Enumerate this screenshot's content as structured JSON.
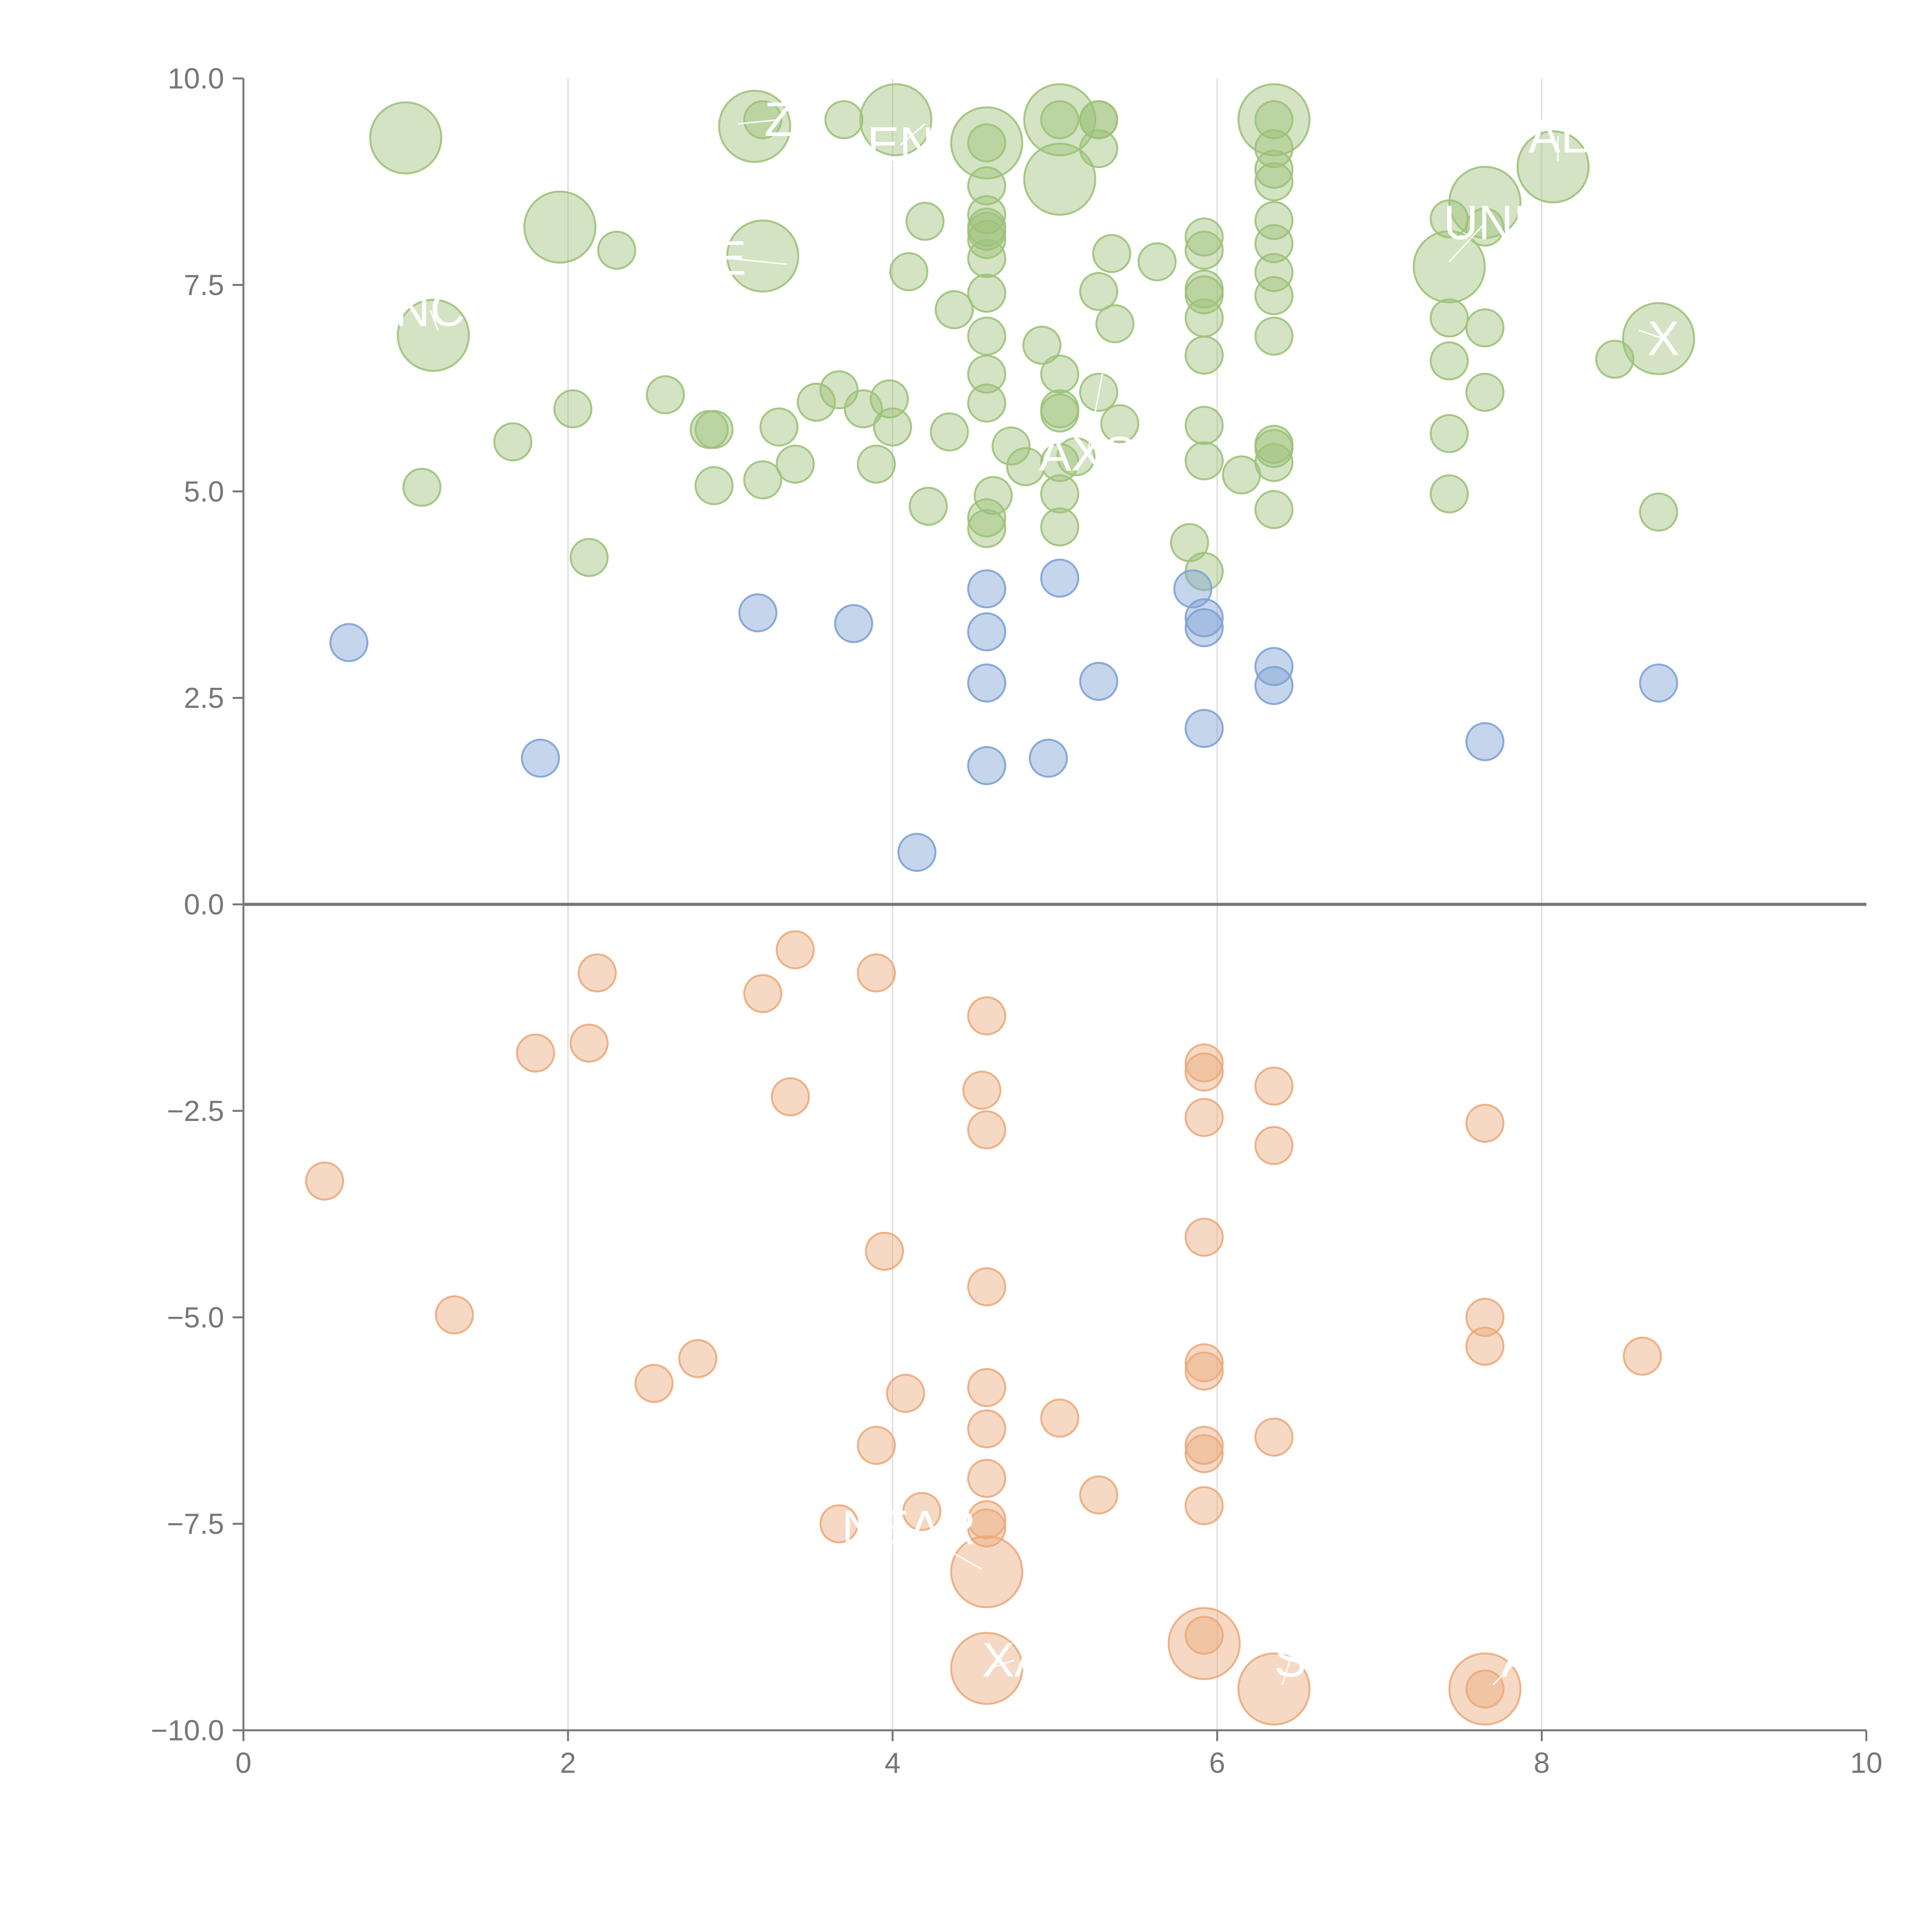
{
  "chart_data": {
    "type": "scatter",
    "title": "",
    "xlabel": "",
    "ylabel": "",
    "xlim": [
      0,
      10
    ],
    "ylim": [
      -10,
      10
    ],
    "x_ticks": [
      "0",
      "2",
      "4",
      "6",
      "8",
      "10"
    ],
    "y_ticks": [
      "−10.0",
      "−7.5",
      "−5.0",
      "−2.5",
      "0.0",
      "2.5",
      "5.0",
      "7.5",
      "10.0"
    ],
    "x_tick_values": [
      0,
      2,
      4,
      6,
      8,
      10
    ],
    "y_tick_values": [
      -10,
      -7.5,
      -5,
      -2.5,
      0,
      2.5,
      5,
      7.5,
      10
    ],
    "vertical_grid_at": [
      2,
      4,
      6,
      8
    ],
    "zero_line": true,
    "series": [
      {
        "color": "#9dc27a",
        "points": [
          {
            "x": 1.0,
            "y": 9.28,
            "size": 2
          },
          {
            "x": 1.17,
            "y": 6.89,
            "size": 2
          },
          {
            "x": 1.1,
            "y": 5.05,
            "size": 1
          },
          {
            "x": 1.66,
            "y": 5.6,
            "size": 1
          },
          {
            "x": 1.95,
            "y": 8.2,
            "size": 2
          },
          {
            "x": 2.03,
            "y": 6.0,
            "size": 1
          },
          {
            "x": 2.13,
            "y": 4.2,
            "size": 1
          },
          {
            "x": 2.3,
            "y": 7.92,
            "size": 1
          },
          {
            "x": 2.6,
            "y": 6.17,
            "size": 1
          },
          {
            "x": 2.87,
            "y": 5.75,
            "size": 1
          },
          {
            "x": 2.9,
            "y": 5.75,
            "size": 1
          },
          {
            "x": 2.9,
            "y": 5.07,
            "size": 1
          },
          {
            "x": 3.15,
            "y": 9.42,
            "size": 2
          },
          {
            "x": 3.2,
            "y": 7.85,
            "size": 2
          },
          {
            "x": 3.2,
            "y": 9.5,
            "size": 1
          },
          {
            "x": 3.2,
            "y": 5.14,
            "size": 1
          },
          {
            "x": 3.3,
            "y": 5.78,
            "size": 1
          },
          {
            "x": 3.4,
            "y": 5.33,
            "size": 1
          },
          {
            "x": 3.53,
            "y": 6.08,
            "size": 1
          },
          {
            "x": 3.67,
            "y": 6.23,
            "size": 1
          },
          {
            "x": 3.7,
            "y": 9.5,
            "size": 1
          },
          {
            "x": 3.82,
            "y": 6.0,
            "size": 1
          },
          {
            "x": 3.9,
            "y": 5.33,
            "size": 1
          },
          {
            "x": 3.98,
            "y": 6.12,
            "size": 1
          },
          {
            "x": 4.0,
            "y": 5.78,
            "size": 1
          },
          {
            "x": 4.02,
            "y": 9.5,
            "size": 2
          },
          {
            "x": 4.1,
            "y": 7.66,
            "size": 1
          },
          {
            "x": 4.2,
            "y": 8.27,
            "size": 1
          },
          {
            "x": 4.22,
            "y": 4.82,
            "size": 1
          },
          {
            "x": 4.35,
            "y": 5.72,
            "size": 1
          },
          {
            "x": 4.38,
            "y": 7.2,
            "size": 1
          },
          {
            "x": 4.58,
            "y": 9.22,
            "size": 2
          },
          {
            "x": 4.58,
            "y": 9.22,
            "size": 1
          },
          {
            "x": 4.58,
            "y": 8.7,
            "size": 1
          },
          {
            "x": 4.58,
            "y": 8.35,
            "size": 1
          },
          {
            "x": 4.58,
            "y": 8.2,
            "size": 1
          },
          {
            "x": 4.58,
            "y": 8.15,
            "size": 1
          },
          {
            "x": 4.58,
            "y": 8.05,
            "size": 1
          },
          {
            "x": 4.58,
            "y": 7.82,
            "size": 1
          },
          {
            "x": 4.58,
            "y": 7.4,
            "size": 1
          },
          {
            "x": 4.58,
            "y": 6.88,
            "size": 1
          },
          {
            "x": 4.58,
            "y": 6.42,
            "size": 1
          },
          {
            "x": 4.58,
            "y": 6.07,
            "size": 1
          },
          {
            "x": 4.62,
            "y": 4.95,
            "size": 1
          },
          {
            "x": 4.58,
            "y": 4.68,
            "size": 1
          },
          {
            "x": 4.58,
            "y": 4.55,
            "size": 1
          },
          {
            "x": 4.73,
            "y": 5.55,
            "size": 1
          },
          {
            "x": 4.82,
            "y": 5.3,
            "size": 1
          },
          {
            "x": 4.92,
            "y": 6.77,
            "size": 1
          },
          {
            "x": 5.03,
            "y": 9.5,
            "size": 2
          },
          {
            "x": 5.03,
            "y": 9.5,
            "size": 1
          },
          {
            "x": 5.03,
            "y": 8.78,
            "size": 2
          },
          {
            "x": 5.03,
            "y": 6.42,
            "size": 1
          },
          {
            "x": 5.03,
            "y": 6.0,
            "size": 1
          },
          {
            "x": 5.03,
            "y": 5.95,
            "size": 1
          },
          {
            "x": 5.03,
            "y": 5.35,
            "size": 1
          },
          {
            "x": 5.03,
            "y": 4.97,
            "size": 1
          },
          {
            "x": 5.03,
            "y": 4.57,
            "size": 1
          },
          {
            "x": 5.13,
            "y": 5.42,
            "size": 1
          },
          {
            "x": 5.27,
            "y": 9.5,
            "size": 1
          },
          {
            "x": 5.27,
            "y": 9.5,
            "size": 1
          },
          {
            "x": 5.27,
            "y": 9.15,
            "size": 1
          },
          {
            "x": 5.27,
            "y": 7.42,
            "size": 1
          },
          {
            "x": 5.27,
            "y": 6.2,
            "size": 1
          },
          {
            "x": 5.35,
            "y": 7.88,
            "size": 1
          },
          {
            "x": 5.37,
            "y": 7.03,
            "size": 1
          },
          {
            "x": 5.4,
            "y": 5.82,
            "size": 1
          },
          {
            "x": 5.63,
            "y": 7.78,
            "size": 1
          },
          {
            "x": 5.83,
            "y": 4.38,
            "size": 1
          },
          {
            "x": 5.92,
            "y": 8.08,
            "size": 1
          },
          {
            "x": 5.92,
            "y": 7.92,
            "size": 1
          },
          {
            "x": 5.92,
            "y": 7.45,
            "size": 1
          },
          {
            "x": 5.92,
            "y": 7.38,
            "size": 1
          },
          {
            "x": 5.92,
            "y": 7.1,
            "size": 1
          },
          {
            "x": 5.92,
            "y": 6.65,
            "size": 1
          },
          {
            "x": 5.92,
            "y": 5.8,
            "size": 1
          },
          {
            "x": 5.92,
            "y": 5.37,
            "size": 1
          },
          {
            "x": 5.92,
            "y": 4.03,
            "size": 1
          },
          {
            "x": 6.15,
            "y": 5.2,
            "size": 1
          },
          {
            "x": 6.35,
            "y": 9.5,
            "size": 2
          },
          {
            "x": 6.35,
            "y": 9.5,
            "size": 1
          },
          {
            "x": 6.35,
            "y": 9.15,
            "size": 1
          },
          {
            "x": 6.35,
            "y": 8.9,
            "size": 1
          },
          {
            "x": 6.35,
            "y": 8.75,
            "size": 1
          },
          {
            "x": 6.35,
            "y": 8.28,
            "size": 1
          },
          {
            "x": 6.35,
            "y": 8.0,
            "size": 1
          },
          {
            "x": 6.35,
            "y": 7.65,
            "size": 1
          },
          {
            "x": 6.35,
            "y": 7.37,
            "size": 1
          },
          {
            "x": 6.35,
            "y": 6.88,
            "size": 1
          },
          {
            "x": 6.35,
            "y": 5.57,
            "size": 1
          },
          {
            "x": 6.35,
            "y": 5.52,
            "size": 1
          },
          {
            "x": 6.35,
            "y": 5.35,
            "size": 1
          },
          {
            "x": 6.35,
            "y": 4.78,
            "size": 1
          },
          {
            "x": 7.43,
            "y": 8.3,
            "size": 1
          },
          {
            "x": 7.43,
            "y": 7.72,
            "size": 2
          },
          {
            "x": 7.43,
            "y": 7.1,
            "size": 1
          },
          {
            "x": 7.43,
            "y": 6.58,
            "size": 1
          },
          {
            "x": 7.43,
            "y": 5.7,
            "size": 1
          },
          {
            "x": 7.43,
            "y": 4.97,
            "size": 1
          },
          {
            "x": 7.65,
            "y": 8.5,
            "size": 2
          },
          {
            "x": 7.65,
            "y": 8.2,
            "size": 1
          },
          {
            "x": 7.65,
            "y": 6.98,
            "size": 1
          },
          {
            "x": 7.65,
            "y": 6.2,
            "size": 1
          },
          {
            "x": 8.07,
            "y": 8.93,
            "size": 2
          },
          {
            "x": 8.45,
            "y": 6.6,
            "size": 1
          },
          {
            "x": 8.72,
            "y": 6.85,
            "size": 2
          },
          {
            "x": 8.72,
            "y": 4.75,
            "size": 1
          }
        ]
      },
      {
        "color": "#7ea2d4",
        "points": [
          {
            "x": 0.65,
            "y": 3.17,
            "size": 1
          },
          {
            "x": 1.83,
            "y": 1.77,
            "size": 1
          },
          {
            "x": 3.17,
            "y": 3.53,
            "size": 1
          },
          {
            "x": 3.76,
            "y": 3.4,
            "size": 1
          },
          {
            "x": 4.15,
            "y": 0.63,
            "size": 1
          },
          {
            "x": 4.58,
            "y": 3.82,
            "size": 1
          },
          {
            "x": 4.58,
            "y": 3.3,
            "size": 1
          },
          {
            "x": 4.58,
            "y": 2.68,
            "size": 1
          },
          {
            "x": 4.58,
            "y": 1.68,
            "size": 1
          },
          {
            "x": 4.96,
            "y": 1.77,
            "size": 1
          },
          {
            "x": 5.03,
            "y": 3.95,
            "size": 1
          },
          {
            "x": 5.27,
            "y": 2.7,
            "size": 1
          },
          {
            "x": 5.85,
            "y": 3.82,
            "size": 1
          },
          {
            "x": 5.92,
            "y": 3.47,
            "size": 1
          },
          {
            "x": 5.92,
            "y": 3.35,
            "size": 1
          },
          {
            "x": 5.92,
            "y": 2.13,
            "size": 1
          },
          {
            "x": 6.35,
            "y": 2.88,
            "size": 1
          },
          {
            "x": 6.35,
            "y": 2.65,
            "size": 1
          },
          {
            "x": 7.65,
            "y": 1.97,
            "size": 1
          },
          {
            "x": 8.72,
            "y": 2.68,
            "size": 1
          }
        ]
      },
      {
        "color": "#ecaa7c",
        "points": [
          {
            "x": 0.5,
            "y": -3.35,
            "size": 1
          },
          {
            "x": 1.3,
            "y": -4.97,
            "size": 1
          },
          {
            "x": 1.8,
            "y": -1.8,
            "size": 1
          },
          {
            "x": 2.13,
            "y": -1.68,
            "size": 1
          },
          {
            "x": 2.18,
            "y": -0.83,
            "size": 1
          },
          {
            "x": 2.53,
            "y": -5.8,
            "size": 1
          },
          {
            "x": 2.8,
            "y": -5.5,
            "size": 1
          },
          {
            "x": 3.2,
            "y": -1.08,
            "size": 1
          },
          {
            "x": 3.37,
            "y": -2.33,
            "size": 1
          },
          {
            "x": 3.4,
            "y": -0.55,
            "size": 1
          },
          {
            "x": 3.67,
            "y": -7.5,
            "size": 1
          },
          {
            "x": 3.9,
            "y": -0.83,
            "size": 1
          },
          {
            "x": 3.9,
            "y": -6.55,
            "size": 1
          },
          {
            "x": 3.95,
            "y": -4.2,
            "size": 1
          },
          {
            "x": 4.08,
            "y": -5.92,
            "size": 1
          },
          {
            "x": 4.18,
            "y": -7.35,
            "size": 1
          },
          {
            "x": 4.55,
            "y": -2.25,
            "size": 1
          },
          {
            "x": 4.58,
            "y": -1.35,
            "size": 1
          },
          {
            "x": 4.58,
            "y": -2.73,
            "size": 1
          },
          {
            "x": 4.58,
            "y": -4.63,
            "size": 1
          },
          {
            "x": 4.58,
            "y": -5.85,
            "size": 1
          },
          {
            "x": 4.58,
            "y": -6.35,
            "size": 1
          },
          {
            "x": 4.58,
            "y": -6.95,
            "size": 1
          },
          {
            "x": 4.58,
            "y": -7.45,
            "size": 1
          },
          {
            "x": 4.58,
            "y": -7.55,
            "size": 1
          },
          {
            "x": 4.58,
            "y": -8.08,
            "size": 2
          },
          {
            "x": 4.58,
            "y": -9.25,
            "size": 2
          },
          {
            "x": 5.03,
            "y": -6.22,
            "size": 1
          },
          {
            "x": 5.27,
            "y": -7.15,
            "size": 1
          },
          {
            "x": 5.92,
            "y": -1.92,
            "size": 1
          },
          {
            "x": 5.92,
            "y": -2.03,
            "size": 1
          },
          {
            "x": 5.92,
            "y": -2.58,
            "size": 1
          },
          {
            "x": 5.92,
            "y": -4.03,
            "size": 1
          },
          {
            "x": 5.92,
            "y": -5.55,
            "size": 1
          },
          {
            "x": 5.92,
            "y": -5.65,
            "size": 1
          },
          {
            "x": 5.92,
            "y": -6.55,
            "size": 1
          },
          {
            "x": 5.92,
            "y": -6.65,
            "size": 1
          },
          {
            "x": 5.92,
            "y": -7.28,
            "size": 1
          },
          {
            "x": 5.92,
            "y": -8.95,
            "size": 2
          },
          {
            "x": 5.92,
            "y": -8.85,
            "size": 1
          },
          {
            "x": 6.35,
            "y": -2.2,
            "size": 1
          },
          {
            "x": 6.35,
            "y": -2.92,
            "size": 1
          },
          {
            "x": 6.35,
            "y": -6.45,
            "size": 1
          },
          {
            "x": 6.35,
            "y": -9.5,
            "size": 2
          },
          {
            "x": 7.65,
            "y": -2.65,
            "size": 1
          },
          {
            "x": 7.65,
            "y": -5.0,
            "size": 1
          },
          {
            "x": 7.65,
            "y": -5.35,
            "size": 1
          },
          {
            "x": 7.65,
            "y": -9.5,
            "size": 2
          },
          {
            "x": 7.65,
            "y": -9.5,
            "size": 1
          },
          {
            "x": 8.62,
            "y": -5.47,
            "size": 1
          }
        ]
      }
    ],
    "annotations": [
      {
        "text": "NC",
        "x": 1.15,
        "y": 7.2,
        "tx": 1.2,
        "ty": 6.95
      },
      {
        "text": "E",
        "x": 3.0,
        "y": 7.82,
        "tx": 3.35,
        "ty": 7.75
      },
      {
        "text": "Z",
        "x": 3.3,
        "y": 9.5,
        "tx": 3.05,
        "ty": 9.45
      },
      {
        "text": "EN",
        "x": 4.05,
        "y": 9.2,
        "tx": 4.2,
        "ty": 9.45
      },
      {
        "text": "AXS",
        "x": 5.2,
        "y": 5.45,
        "tx": 5.3,
        "ty": 6.5
      },
      {
        "text": "UNI",
        "x": 7.65,
        "y": 8.25,
        "tx": 7.43,
        "ty": 7.78
      },
      {
        "text": "AL",
        "x": 8.1,
        "y": 9.3,
        "tx": 8.1,
        "ty": 9.0
      },
      {
        "text": "X",
        "x": 8.75,
        "y": 6.85,
        "tx": 8.6,
        "ty": 6.95
      },
      {
        "text": "NEAR",
        "x": 4.1,
        "y": -7.55,
        "tx": 4.55,
        "ty": -8.05
      },
      {
        "text": "XA",
        "x": 4.75,
        "y": -9.15,
        "tx": 4.6,
        "ty": -9.25
      },
      {
        "text": "S",
        "x": 6.45,
        "y": -9.15,
        "tx": 6.4,
        "ty": -9.45
      },
      {
        "text": "A",
        "x": 7.85,
        "y": -9.15,
        "tx": 7.7,
        "ty": -9.45
      }
    ]
  }
}
